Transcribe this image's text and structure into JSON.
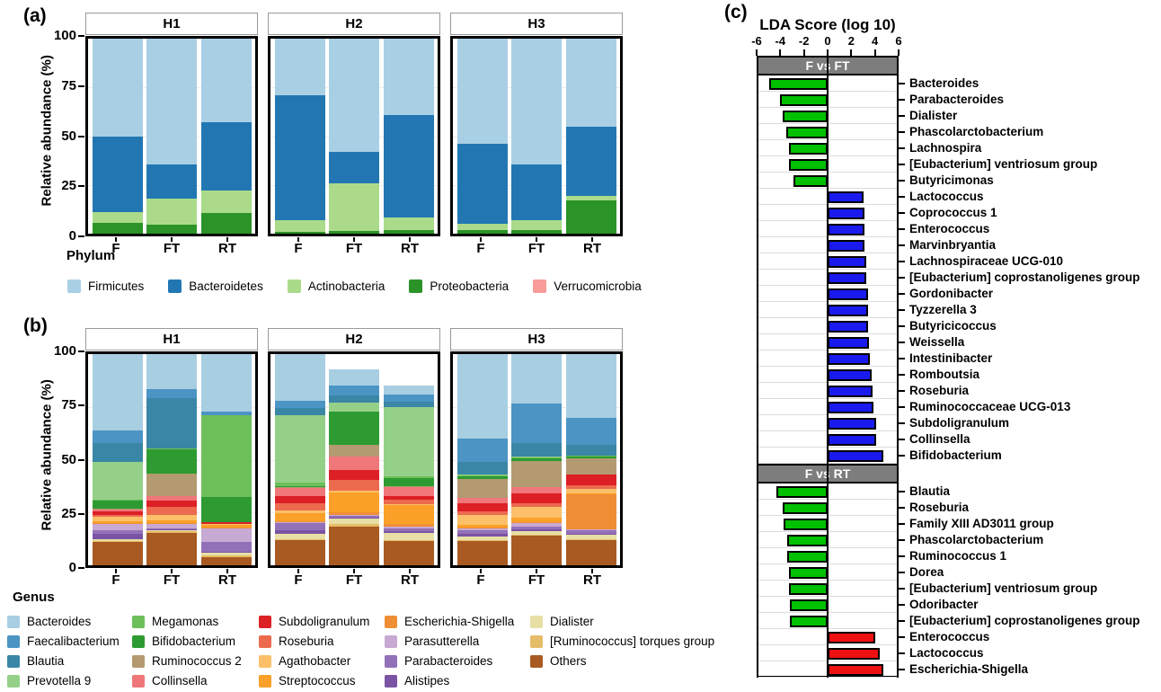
{
  "panels": {
    "a": {
      "label": "(a)"
    },
    "b": {
      "label": "(b)"
    },
    "c": {
      "label": "(c)"
    }
  },
  "chart_data": [
    {
      "id": "a",
      "type": "bar",
      "stacked": true,
      "title": "",
      "ylabel": "Relative abundance (%)",
      "ylim": [
        0,
        100
      ],
      "yticks": [
        0,
        25,
        50,
        75,
        100
      ],
      "grid": "faint horizontal lines at 25/50/75",
      "facets": [
        "H1",
        "H2",
        "H3"
      ],
      "categories": [
        "F",
        "FT",
        "RT"
      ],
      "legend_title": "Phylum",
      "legend_position": "bottom",
      "stack_order": "series listed top-to-bottom within each bar",
      "series": [
        {
          "name": "Firmicutes",
          "color": "#a9cfe4",
          "values": {
            "H1": [
              50,
              64.5,
              43
            ],
            "H2": [
              29,
              58,
              39
            ],
            "H3": [
              54,
              64.5,
              45
            ]
          }
        },
        {
          "name": "Bacteroidetes",
          "color": "#2277b3",
          "values": {
            "H1": [
              39,
              17.5,
              35
            ],
            "H2": [
              64,
              16,
              52.5
            ],
            "H3": [
              41,
              28.5,
              35.5
            ]
          }
        },
        {
          "name": "Actinobacteria",
          "color": "#abdb8a",
          "values": {
            "H1": [
              5.5,
              13.5,
              11.5
            ],
            "H2": [
              6,
              24.5,
              6.5
            ],
            "H3": [
              3,
              5,
              2.5
            ]
          }
        },
        {
          "name": "Proteobacteria",
          "color": "#2b9327",
          "values": {
            "H1": [
              5.5,
              4.5,
              10.5
            ],
            "H2": [
              1,
              1.5,
              2
            ],
            "H3": [
              2,
              2,
              17
            ]
          }
        },
        {
          "name": "Verrucomicrobia",
          "color": "#f99c9a",
          "values": {
            "H1": [
              0,
              0,
              0
            ],
            "H2": [
              0,
              0,
              0
            ],
            "H3": [
              0,
              0,
              0
            ]
          }
        }
      ]
    },
    {
      "id": "b",
      "type": "bar",
      "stacked": true,
      "title": "",
      "ylabel": "Relative abundance (%)",
      "ylim": [
        0,
        100
      ],
      "yticks": [
        0,
        25,
        50,
        75,
        100
      ],
      "grid": "faint horizontal lines at 25/50/75",
      "facets": [
        "H1",
        "H2",
        "H3"
      ],
      "categories": [
        "F",
        "FT",
        "RT"
      ],
      "legend_title": "Genus",
      "legend_position": "bottom",
      "legend_columns": [
        4,
        4,
        4,
        4,
        3
      ],
      "stack_order": "series listed top-to-bottom within each bar",
      "series": [
        {
          "name": "Bacteroides",
          "color": "#a8cee2",
          "values": {
            "H1": [
              36,
              16.5,
              27
            ],
            "H2": [
              22,
              8,
              4
            ],
            "H3": [
              40,
              23.5,
              30
            ]
          }
        },
        {
          "name": "Faecalibacterium",
          "color": "#4b94c4",
          "values": {
            "H1": [
              6,
              4.5,
              2
            ],
            "H2": [
              3.5,
              4.5,
              3.5
            ],
            "H3": [
              11,
              18.5,
              13
            ]
          }
        },
        {
          "name": "Blautia",
          "color": "#3a86a6",
          "values": {
            "H1": [
              9,
              23.5,
              0
            ],
            "H2": [
              3.5,
              3.5,
              2.5
            ],
            "H3": [
              6,
              6.5,
              5
            ]
          }
        },
        {
          "name": "Prevotella 9",
          "color": "#95d089",
          "values": {
            "H1": [
              18,
              0,
              0
            ],
            "H2": [
              32,
              4,
              33
            ],
            "H3": [
              0.5,
              0.5,
              0
            ]
          }
        },
        {
          "name": "Megamonas",
          "color": "#6dbf59",
          "values": {
            "H1": [
              0.5,
              0.5,
              38.5
            ],
            "H2": [
              1.5,
              0,
              0.5
            ],
            "H3": [
              0.5,
              0.5,
              0.5
            ]
          }
        },
        {
          "name": "Bifidobacterium",
          "color": "#2d9b31",
          "values": {
            "H1": [
              3.5,
              11.5,
              12
            ],
            "H2": [
              0.5,
              16,
              4
            ],
            "H3": [
              1,
              1,
              1
            ]
          }
        },
        {
          "name": "Ruminococcus 2",
          "color": "#b39a71",
          "values": {
            "H1": [
              0.5,
              10.5,
              0
            ],
            "H2": [
              0.5,
              5.5,
              0.5
            ],
            "H3": [
              9,
              12.5,
              7.5
            ]
          }
        },
        {
          "name": "Collinsella",
          "color": "#ef7679",
          "values": {
            "H1": [
              1,
              2.5,
              0
            ],
            "H2": [
              3.5,
              6.5,
              4
            ],
            "H3": [
              2.5,
              3,
              0
            ]
          }
        },
        {
          "name": "Subdoligranulum",
          "color": "#dc2025",
          "values": {
            "H1": [
              1.5,
              3,
              1
            ],
            "H2": [
              3.5,
              4.5,
              2
            ],
            "H3": [
              4,
              4.5,
              5
            ]
          }
        },
        {
          "name": "Roseburia",
          "color": "#ec6a4e",
          "values": {
            "H1": [
              1,
              3.5,
              0
            ],
            "H2": [
              3.5,
              5,
              2
            ],
            "H3": [
              1.5,
              2,
              2
            ]
          }
        },
        {
          "name": "Agathobacter",
          "color": "#fcc06a",
          "values": {
            "H1": [
              2,
              2.5,
              0.5
            ],
            "H2": [
              1.5,
              1,
              0.5
            ],
            "H3": [
              5,
              5,
              2
            ]
          }
        },
        {
          "name": "Streptococcus",
          "color": "#fba028",
          "values": {
            "H1": [
              1,
              1.5,
              1
            ],
            "H2": [
              3.5,
              9.5,
              9
            ],
            "H3": [
              1,
              2,
              0.5
            ]
          }
        },
        {
          "name": "Escherichia-Shigella",
          "color": "#ef8e35",
          "values": {
            "H1": [
              0.5,
              0.5,
              0.5
            ],
            "H2": [
              0.5,
              1,
              1
            ],
            "H3": [
              0.5,
              0.5,
              16.5
            ]
          }
        },
        {
          "name": "Parasutterella",
          "color": "#c7a9d3",
          "values": {
            "H1": [
              3,
              2,
              6.5
            ],
            "H2": [
              0.5,
              0.5,
              1
            ],
            "H3": [
              1,
              1.5,
              0.5
            ]
          }
        },
        {
          "name": "Parabacteroides",
          "color": "#9371b8",
          "values": {
            "H1": [
              1.5,
              0.5,
              4.5
            ],
            "H2": [
              3.5,
              1,
              1.5
            ],
            "H3": [
              1.5,
              1.5,
              1.5
            ]
          }
        },
        {
          "name": "Alistipes",
          "color": "#7b53a4",
          "values": {
            "H1": [
              2.5,
              0.5,
              0.5
            ],
            "H2": [
              1.5,
              0.5,
              0.5
            ],
            "H3": [
              1.5,
              1,
              0.5
            ]
          }
        },
        {
          "name": "Dialister",
          "color": "#e7dfa6",
          "values": {
            "H1": [
              1,
              0.5,
              1.5
            ],
            "H2": [
              2.5,
              2.5,
              3.5
            ],
            "H3": [
              1.5,
              1.5,
              2
            ]
          }
        },
        {
          "name": "[Ruminococcus] torques group",
          "color": "#e5bd68",
          "values": {
            "H1": [
              0.5,
              0.5,
              0.5
            ],
            "H2": [
              0.5,
              1,
              0.5
            ],
            "H3": [
              0.5,
              0.5,
              0.5
            ]
          }
        },
        {
          "name": "Others",
          "color": "#a85a22",
          "values": {
            "H1": [
              11,
              15.5,
              4
            ],
            "H2": [
              12,
              18.5,
              11.5
            ],
            "H3": [
              11.5,
              14,
              12
            ]
          }
        }
      ]
    },
    {
      "id": "c",
      "type": "bar",
      "orientation": "horizontal",
      "title": "LDA Score (log 10)",
      "xlim": [
        -6,
        6
      ],
      "xticks": [
        -6,
        -4,
        -2,
        0,
        2,
        4,
        6
      ],
      "grid": "light horizontal line per row",
      "sections": [
        {
          "header": "F vs FT",
          "negative_color": "#00c000",
          "positive_color": "#1a1aee",
          "bars": [
            {
              "label": "Bacteroides",
              "value": -4.9
            },
            {
              "label": "Parabacteroides",
              "value": -4.0
            },
            {
              "label": "Dialister",
              "value": -3.8
            },
            {
              "label": "Phascolarctobacterium",
              "value": -3.5
            },
            {
              "label": "Lachnospira",
              "value": -3.3
            },
            {
              "label": "[Eubacterium] ventriosum group",
              "value": -3.3
            },
            {
              "label": "Butyricimonas",
              "value": -2.9
            },
            {
              "label": "Lactococcus",
              "value": 3.0
            },
            {
              "label": "Coprococcus 1",
              "value": 3.1
            },
            {
              "label": "Enterococcus",
              "value": 3.15
            },
            {
              "label": "Marvinbryantia",
              "value": 3.15
            },
            {
              "label": "Lachnospiraceae UCG-010",
              "value": 3.25
            },
            {
              "label": "[Eubacterium] coprostanoligenes group",
              "value": 3.3
            },
            {
              "label": "Gordonibacter",
              "value": 3.4
            },
            {
              "label": "Tyzzerella 3",
              "value": 3.4
            },
            {
              "label": "Butyricicoccus",
              "value": 3.4
            },
            {
              "label": "Weissella",
              "value": 3.5
            },
            {
              "label": "Intestinibacter",
              "value": 3.6
            },
            {
              "label": "Romboutsia",
              "value": 3.7
            },
            {
              "label": "Roseburia",
              "value": 3.8
            },
            {
              "label": "Ruminococcaceae UCG-013",
              "value": 3.9
            },
            {
              "label": "Subdoligranulum",
              "value": 4.1
            },
            {
              "label": "Collinsella",
              "value": 4.1
            },
            {
              "label": "Bifidobacterium",
              "value": 4.7
            }
          ]
        },
        {
          "header": "F vs RT",
          "negative_color": "#00c000",
          "positive_color": "#ee1111",
          "bars": [
            {
              "label": "Blautia",
              "value": -4.3
            },
            {
              "label": "Roseburia",
              "value": -3.8
            },
            {
              "label": "Family XIII AD3011 group",
              "value": -3.7
            },
            {
              "label": "Phascolarctobacterium",
              "value": -3.4
            },
            {
              "label": "Ruminococcus 1",
              "value": -3.4
            },
            {
              "label": "Dorea",
              "value": -3.3
            },
            {
              "label": "[Eubacterium] ventriosum group",
              "value": -3.3
            },
            {
              "label": "Odoribacter",
              "value": -3.2
            },
            {
              "label": "[Eubacterium] coprostanoligenes group",
              "value": -3.2
            },
            {
              "label": "Enterococcus",
              "value": 4.0
            },
            {
              "label": "Lactococcus",
              "value": 4.4
            },
            {
              "label": "Escherichia-Shigella",
              "value": 4.7
            }
          ]
        }
      ]
    }
  ]
}
